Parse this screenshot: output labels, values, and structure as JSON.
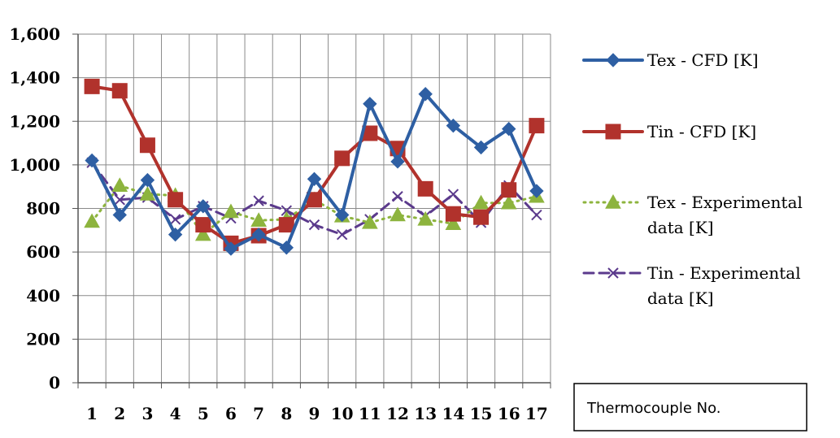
{
  "chart_data": {
    "type": "line",
    "categories": [
      "1",
      "2",
      "3",
      "4",
      "5",
      "6",
      "7",
      "8",
      "9",
      "10",
      "11",
      "12",
      "13",
      "14",
      "15",
      "16",
      "17"
    ],
    "xlabel": "Thermocouple No.",
    "ylabel": "",
    "ylim": [
      0,
      1600
    ],
    "yticks": [
      0,
      200,
      400,
      600,
      800,
      1000,
      1200,
      1400,
      1600
    ],
    "ytick_labels": [
      "0",
      "200",
      "400",
      "600",
      "800",
      "1,000",
      "1,200",
      "1,400",
      "1,600"
    ],
    "grid": true,
    "legend_position": "right",
    "series": [
      {
        "name": "Tex - CFD [K]",
        "color": "#2E5FA3",
        "marker": "diamond",
        "dash": "solid",
        "values": [
          1020,
          770,
          930,
          680,
          810,
          615,
          680,
          620,
          935,
          770,
          1280,
          1015,
          1325,
          1180,
          1080,
          1165,
          880
        ]
      },
      {
        "name": "Tin - CFD [K]",
        "color": "#B1322C",
        "marker": "square",
        "dash": "solid",
        "values": [
          1360,
          1340,
          1090,
          840,
          725,
          640,
          675,
          725,
          840,
          1030,
          1145,
          1075,
          890,
          775,
          760,
          885,
          1180
        ]
      },
      {
        "name": "Tex - Experimental data [K]",
        "color": "#8DB43E",
        "marker": "triangle",
        "dash": "dotted",
        "values": [
          740,
          905,
          865,
          860,
          680,
          785,
          745,
          750,
          840,
          765,
          735,
          770,
          750,
          730,
          825,
          825,
          855
        ]
      },
      {
        "name": "Tin - Experimental data [K]",
        "color": "#5B3A8C",
        "marker": "x",
        "dash": "dashed",
        "values": [
          1010,
          840,
          850,
          750,
          810,
          755,
          835,
          790,
          725,
          680,
          750,
          855,
          765,
          865,
          735,
          905,
          770
        ]
      }
    ]
  },
  "legend": [
    {
      "lines": [
        "Tex - CFD [K]"
      ]
    },
    {
      "lines": [
        "Tin - CFD [K]"
      ]
    },
    {
      "lines": [
        "Tex - Experimental",
        "data [K]"
      ]
    },
    {
      "lines": [
        "Tin - Experimental",
        "data [K]"
      ]
    }
  ]
}
